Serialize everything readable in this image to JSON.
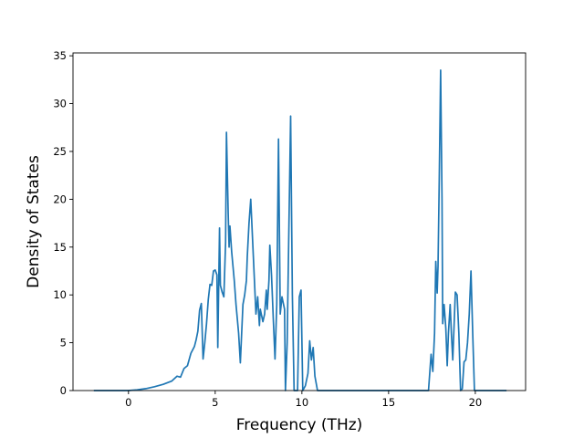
{
  "chart_data": {
    "type": "line",
    "title": "",
    "xlabel": "Frequency (THz)",
    "ylabel": "Density of States",
    "xlim": [
      -3.2,
      22.9
    ],
    "ylim": [
      0,
      35.3
    ],
    "xticks": [
      0,
      5,
      10,
      15,
      20
    ],
    "xtick_labels": [
      "0",
      "5",
      "10",
      "15",
      "20"
    ],
    "yticks": [
      0,
      5,
      10,
      15,
      20,
      25,
      30,
      35
    ],
    "ytick_labels": [
      "0",
      "5",
      "10",
      "15",
      "20",
      "25",
      "30",
      "35"
    ],
    "grid": false,
    "legend": "none",
    "series": [
      {
        "color": "#1f77b4",
        "points": [
          [
            -2.0,
            0
          ],
          [
            -1.0,
            0
          ],
          [
            0.0,
            0
          ],
          [
            0.5,
            0.08
          ],
          [
            1.0,
            0.2
          ],
          [
            1.5,
            0.4
          ],
          [
            2.0,
            0.65
          ],
          [
            2.5,
            1.0
          ],
          [
            2.8,
            1.5
          ],
          [
            3.0,
            1.4
          ],
          [
            3.2,
            2.3
          ],
          [
            3.4,
            2.6
          ],
          [
            3.6,
            3.9
          ],
          [
            3.8,
            4.6
          ],
          [
            3.9,
            5.3
          ],
          [
            4.0,
            6.2
          ],
          [
            4.1,
            8.4
          ],
          [
            4.2,
            9.1
          ],
          [
            4.3,
            3.3
          ],
          [
            4.4,
            5.0
          ],
          [
            4.5,
            7.0
          ],
          [
            4.6,
            9.5
          ],
          [
            4.7,
            11.1
          ],
          [
            4.8,
            11.0
          ],
          [
            4.9,
            12.5
          ],
          [
            5.0,
            12.6
          ],
          [
            5.1,
            12.1
          ],
          [
            5.15,
            4.5
          ],
          [
            5.25,
            17.0
          ],
          [
            5.3,
            11.0
          ],
          [
            5.4,
            10.3
          ],
          [
            5.5,
            9.8
          ],
          [
            5.6,
            15.5
          ],
          [
            5.65,
            27.0
          ],
          [
            5.75,
            18.5
          ],
          [
            5.8,
            15.0
          ],
          [
            5.85,
            17.2
          ],
          [
            5.95,
            14.5
          ],
          [
            6.1,
            11.5
          ],
          [
            6.2,
            9.0
          ],
          [
            6.35,
            6.0
          ],
          [
            6.45,
            2.9
          ],
          [
            6.6,
            9.0
          ],
          [
            6.7,
            10.0
          ],
          [
            6.8,
            11.5
          ],
          [
            6.85,
            14.0
          ],
          [
            6.95,
            17.5
          ],
          [
            7.05,
            20.0
          ],
          [
            7.15,
            16.0
          ],
          [
            7.25,
            12.0
          ],
          [
            7.35,
            8.0
          ],
          [
            7.45,
            9.8
          ],
          [
            7.55,
            6.8
          ],
          [
            7.6,
            8.5
          ],
          [
            7.75,
            7.2
          ],
          [
            7.85,
            8.0
          ],
          [
            7.95,
            10.5
          ],
          [
            8.0,
            8.5
          ],
          [
            8.1,
            11.5
          ],
          [
            8.15,
            15.2
          ],
          [
            8.25,
            12.0
          ],
          [
            8.35,
            7.5
          ],
          [
            8.45,
            3.3
          ],
          [
            8.55,
            9.0
          ],
          [
            8.65,
            26.3
          ],
          [
            8.75,
            8.0
          ],
          [
            8.85,
            9.8
          ],
          [
            9.0,
            8.5
          ],
          [
            9.05,
            0
          ],
          [
            9.15,
            5.0
          ],
          [
            9.25,
            17.0
          ],
          [
            9.35,
            28.7
          ],
          [
            9.45,
            10.0
          ],
          [
            9.55,
            0
          ],
          [
            9.75,
            0
          ],
          [
            9.85,
            9.8
          ],
          [
            9.95,
            10.5
          ],
          [
            10.05,
            0
          ],
          [
            10.2,
            0.5
          ],
          [
            10.35,
            1.8
          ],
          [
            10.45,
            5.2
          ],
          [
            10.55,
            3.2
          ],
          [
            10.65,
            4.5
          ],
          [
            10.75,
            1.5
          ],
          [
            10.9,
            0
          ],
          [
            12.0,
            0
          ],
          [
            13.0,
            0
          ],
          [
            14.0,
            0
          ],
          [
            15.0,
            0
          ],
          [
            16.0,
            0
          ],
          [
            17.0,
            0
          ],
          [
            17.3,
            0
          ],
          [
            17.45,
            3.8
          ],
          [
            17.55,
            2.0
          ],
          [
            17.65,
            6.0
          ],
          [
            17.72,
            13.5
          ],
          [
            17.8,
            10.2
          ],
          [
            17.85,
            13.0
          ],
          [
            17.92,
            22.0
          ],
          [
            18.0,
            33.5
          ],
          [
            18.08,
            20.0
          ],
          [
            18.12,
            7.0
          ],
          [
            18.2,
            9.0
          ],
          [
            18.3,
            6.5
          ],
          [
            18.38,
            2.6
          ],
          [
            18.45,
            6.0
          ],
          [
            18.55,
            9.0
          ],
          [
            18.62,
            6.0
          ],
          [
            18.7,
            3.2
          ],
          [
            18.78,
            7.0
          ],
          [
            18.85,
            10.3
          ],
          [
            18.95,
            10.0
          ],
          [
            19.05,
            6.0
          ],
          [
            19.15,
            0
          ],
          [
            19.25,
            0.2
          ],
          [
            19.35,
            3.0
          ],
          [
            19.45,
            3.2
          ],
          [
            19.55,
            5.0
          ],
          [
            19.65,
            8.0
          ],
          [
            19.75,
            12.5
          ],
          [
            19.85,
            6.0
          ],
          [
            19.95,
            0
          ],
          [
            20.5,
            0
          ],
          [
            21.0,
            0
          ],
          [
            21.8,
            0
          ]
        ]
      }
    ]
  }
}
